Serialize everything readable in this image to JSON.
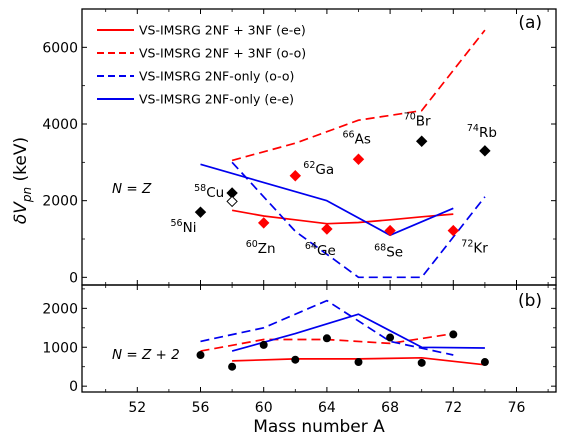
{
  "chart_data": [
    {
      "panel": "a",
      "type": "line",
      "panel_label": "(a)",
      "annotation": "N = Z",
      "ylabel": "δV_pn (keV)",
      "ylabel_main": "δV",
      "ylabel_sub": "pn",
      "ylabel_unit": " (keV)",
      "xlim": [
        48.5,
        78.5
      ],
      "ylim": [
        -200,
        7000
      ],
      "yticks": [
        0,
        2000,
        4000,
        6000
      ],
      "grid": false,
      "legend_position": "top-left",
      "legend": [
        {
          "label": "VS-IMSRG 2NF + 3NF (e-e)",
          "color": "#ff0000",
          "dash": "solid"
        },
        {
          "label": "VS-IMSRG 2NF + 3NF (o-o)",
          "color": "#ff0000",
          "dash": "dashed"
        },
        {
          "label": "VS-IMSRG 2NF-only (o-o)",
          "color": "#0000ee",
          "dash": "dashed"
        },
        {
          "label": "VS-IMSRG 2NF-only (e-e)",
          "color": "#0000ee",
          "dash": "solid"
        }
      ],
      "series": [
        {
          "name": "VS-IMSRG 2NF + 3NF (e-e)",
          "color": "#ff0000",
          "dash": "solid",
          "x": [
            58,
            60,
            62,
            64,
            66,
            68,
            70,
            72
          ],
          "y": [
            1750,
            1600,
            1500,
            1400,
            1430,
            1500,
            1580,
            1650
          ]
        },
        {
          "name": "VS-IMSRG 2NF + 3NF (o-o)",
          "color": "#ff0000",
          "dash": "dashed",
          "x": [
            58,
            62,
            66,
            70,
            74
          ],
          "y": [
            3050,
            3500,
            4100,
            4350,
            6450
          ]
        },
        {
          "name": "VS-IMSRG 2NF-only (o-o)",
          "color": "#0000ee",
          "dash": "dashed",
          "x": [
            58,
            62,
            66,
            70,
            74
          ],
          "y": [
            3000,
            1200,
            0,
            0,
            2100
          ]
        },
        {
          "name": "VS-IMSRG 2NF-only (e-e)",
          "color": "#0000ee",
          "dash": "solid",
          "x": [
            56,
            64,
            68,
            72
          ],
          "y": [
            2950,
            2000,
            1100,
            1800
          ]
        }
      ],
      "markers": [
        {
          "label": "Ni",
          "mass": "56",
          "x": 56,
          "y": 1700,
          "shape": "diamond",
          "color": "#000000",
          "filled": true
        },
        {
          "label": "Cu",
          "mass": "58",
          "x": 58,
          "y": 2200,
          "shape": "diamond",
          "color": "#000000",
          "filled": true
        },
        {
          "label": "",
          "mass": "",
          "x": 58,
          "y": 1980,
          "shape": "diamond",
          "color": "#000000",
          "filled": false
        },
        {
          "label": "Zn",
          "mass": "60",
          "x": 60,
          "y": 1420,
          "shape": "diamond",
          "color": "#ff0000",
          "filled": true
        },
        {
          "label": "Ga",
          "mass": "62",
          "x": 62,
          "y": 2650,
          "shape": "diamond",
          "color": "#ff0000",
          "filled": true
        },
        {
          "label": "Ge",
          "mass": "64",
          "x": 64,
          "y": 1260,
          "shape": "diamond",
          "color": "#ff0000",
          "filled": true
        },
        {
          "label": "As",
          "mass": "66",
          "x": 66,
          "y": 3080,
          "shape": "diamond",
          "color": "#ff0000",
          "filled": true
        },
        {
          "label": "Se",
          "mass": "68",
          "x": 68,
          "y": 1220,
          "shape": "diamond",
          "color": "#ff0000",
          "filled": true
        },
        {
          "label": "Br",
          "mass": "70",
          "x": 70,
          "y": 3550,
          "shape": "diamond",
          "color": "#000000",
          "filled": true
        },
        {
          "label": "Kr",
          "mass": "72",
          "x": 72,
          "y": 1220,
          "shape": "diamond",
          "color": "#ff0000",
          "filled": true
        },
        {
          "label": "Rb",
          "mass": "74",
          "x": 74,
          "y": 3300,
          "shape": "diamond",
          "color": "#000000",
          "filled": true
        }
      ]
    },
    {
      "panel": "b",
      "type": "line",
      "panel_label": "(b)",
      "annotation": "N = Z + 2",
      "xlabel": "Mass number A",
      "xlim": [
        48.5,
        78.5
      ],
      "ylim": [
        -150,
        2600
      ],
      "xticks": [
        52,
        56,
        60,
        64,
        68,
        72,
        76
      ],
      "yticks": [
        0,
        1000,
        2000
      ],
      "grid": false,
      "series": [
        {
          "color": "#ff0000",
          "dash": "solid",
          "x": [
            58,
            62,
            66,
            70,
            74
          ],
          "y": [
            650,
            700,
            700,
            730,
            550
          ]
        },
        {
          "color": "#ff0000",
          "dash": "dashed",
          "x": [
            56,
            60,
            64,
            68,
            72
          ],
          "y": [
            900,
            1200,
            1200,
            1100,
            1350
          ]
        },
        {
          "color": "#0000ee",
          "dash": "dashed",
          "x": [
            56,
            60,
            64,
            68,
            72
          ],
          "y": [
            1150,
            1500,
            2200,
            1150,
            800
          ]
        },
        {
          "color": "#0000ee",
          "dash": "solid",
          "x": [
            58,
            62,
            66,
            70,
            74
          ],
          "y": [
            900,
            1350,
            1850,
            1000,
            980
          ]
        }
      ],
      "points": [
        {
          "x": 56,
          "y": 800
        },
        {
          "x": 58,
          "y": 500
        },
        {
          "x": 60,
          "y": 1060
        },
        {
          "x": 62,
          "y": 680
        },
        {
          "x": 64,
          "y": 1230
        },
        {
          "x": 66,
          "y": 620
        },
        {
          "x": 68,
          "y": 1250
        },
        {
          "x": 70,
          "y": 600
        },
        {
          "x": 72,
          "y": 1330
        },
        {
          "x": 74,
          "y": 620
        }
      ]
    }
  ]
}
